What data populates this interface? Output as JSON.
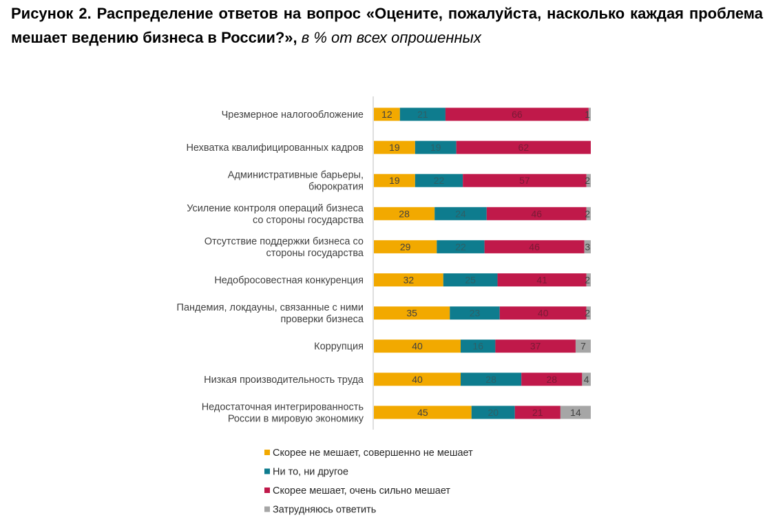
{
  "caption": {
    "bold": "Рисунок 2. Распределение ответов на вопрос «Оцените, пожалуйста, насколько каждая проблема мешает ведению бизнеса в России?»,",
    "italic": "в % от всех опрошенных"
  },
  "chart_data": {
    "type": "bar",
    "orientation": "horizontal",
    "stacked": true,
    "normalized_percent": true,
    "xlim": [
      0,
      100
    ],
    "grid": false,
    "legend_position": "bottom",
    "categories": [
      "Чрезмерное налогообложение",
      "Нехватка квалифицированных кадров",
      "Административные барьеры, бюрократия",
      "Усиление контроля операций бизнеса со стороны государства",
      "Отсутствие поддержки бизнеса со стороны государства",
      "Недобросовестная конкуренция",
      "Пандемия, локдауны, связанные с ними проверки бизнеса",
      "Коррупция",
      "Низкая производительность труда",
      "Недостаточная интегрированность России в мировую экономику"
    ],
    "category_lines": [
      [
        "Чрезмерное налогообложение"
      ],
      [
        "Нехватка квалифицированных кадров"
      ],
      [
        "Административные барьеры,",
        "бюрократия"
      ],
      [
        "Усиление контроля операций бизнеса",
        "со стороны государства"
      ],
      [
        "Отсутствие поддержки бизнеса со",
        "стороны государства"
      ],
      [
        "Недобросовестная конкуренция"
      ],
      [
        "Пандемия, локдауны, связанные с ними",
        "проверки бизнеса"
      ],
      [
        "Коррупция"
      ],
      [
        "Низкая производительность труда"
      ],
      [
        "Недостаточная интегрированность",
        "России в мировую экономику"
      ]
    ],
    "series": [
      {
        "name": "Скорее не мешает, совершенно не мешает",
        "color": "#F2A900",
        "label_color": "#404040",
        "values": [
          12,
          19,
          19,
          28,
          29,
          32,
          35,
          40,
          40,
          45
        ]
      },
      {
        "name": "Ни то, ни другое",
        "color": "#0E7C8E",
        "label_color": "#2f5f66",
        "values": [
          21,
          19,
          22,
          24,
          22,
          25,
          23,
          16,
          28,
          20
        ]
      },
      {
        "name": "Скорее мешает, очень сильно мешает",
        "color": "#C0194A",
        "label_color": "#7a1a36",
        "values": [
          66,
          62,
          57,
          46,
          46,
          41,
          40,
          37,
          28,
          21
        ]
      },
      {
        "name": "Затрудняюсь ответить",
        "color": "#A6A6A6",
        "label_color": "#404040",
        "values": [
          1,
          0,
          2,
          2,
          3,
          2,
          2,
          7,
          4,
          14
        ]
      }
    ]
  }
}
